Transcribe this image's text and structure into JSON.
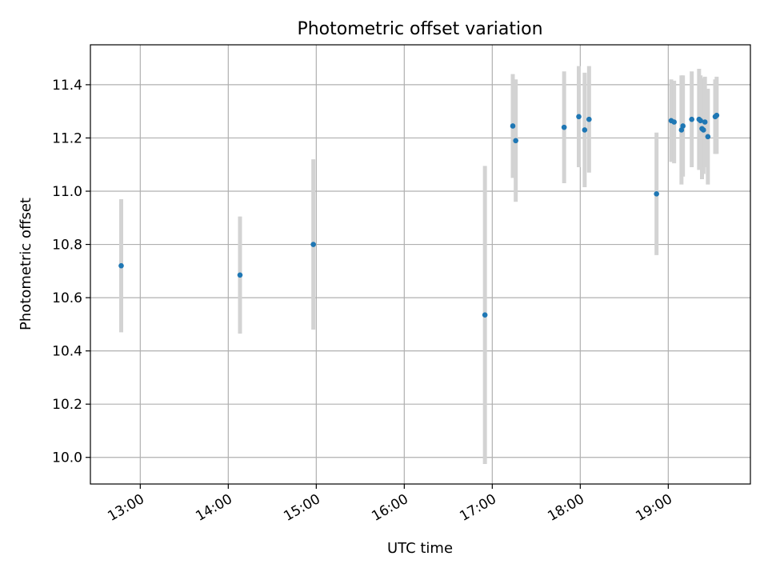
{
  "chart_data": {
    "type": "scatter",
    "title": "Photometric offset variation",
    "xlabel": "UTC time",
    "ylabel": "Photometric offset",
    "xlim": [
      "12:26",
      "19:56"
    ],
    "ylim": [
      9.9,
      11.55
    ],
    "x_ticks": [
      "13:00",
      "14:00",
      "15:00",
      "16:00",
      "17:00",
      "18:00",
      "19:00"
    ],
    "y_ticks": [
      10.0,
      10.2,
      10.4,
      10.6,
      10.8,
      11.0,
      11.2,
      11.4
    ],
    "grid": true,
    "colors": {
      "point": "#1f77b4",
      "errorbar": "#d3d3d3",
      "grid": "#b0b0b0"
    },
    "points": [
      {
        "x": "12:47",
        "y": 10.72,
        "err": 0.25
      },
      {
        "x": "14:08",
        "y": 10.685,
        "err": 0.22
      },
      {
        "x": "14:58",
        "y": 10.8,
        "err": 0.32
      },
      {
        "x": "16:55",
        "y": 10.535,
        "err": 0.56
      },
      {
        "x": "17:14",
        "y": 11.245,
        "err": 0.195
      },
      {
        "x": "17:16",
        "y": 11.19,
        "err": 0.23
      },
      {
        "x": "17:49",
        "y": 11.24,
        "err": 0.21
      },
      {
        "x": "17:59",
        "y": 11.28,
        "err": 0.19
      },
      {
        "x": "18:03",
        "y": 11.23,
        "err": 0.215
      },
      {
        "x": "18:06",
        "y": 11.27,
        "err": 0.2
      },
      {
        "x": "18:52",
        "y": 10.99,
        "err": 0.23
      },
      {
        "x": "19:02",
        "y": 11.265,
        "err": 0.155
      },
      {
        "x": "19:04",
        "y": 11.26,
        "err": 0.155
      },
      {
        "x": "19:09",
        "y": 11.23,
        "err": 0.205
      },
      {
        "x": "19:10",
        "y": 11.245,
        "err": 0.19
      },
      {
        "x": "19:16",
        "y": 11.27,
        "err": 0.18
      },
      {
        "x": "19:21",
        "y": 11.27,
        "err": 0.19
      },
      {
        "x": "19:22",
        "y": 11.265,
        "err": 0.17
      },
      {
        "x": "19:23",
        "y": 11.235,
        "err": 0.19
      },
      {
        "x": "19:24",
        "y": 11.23,
        "err": 0.165
      },
      {
        "x": "19:25",
        "y": 11.26,
        "err": 0.17
      },
      {
        "x": "19:27",
        "y": 11.205,
        "err": 0.18
      },
      {
        "x": "19:32",
        "y": 11.28,
        "err": 0.14
      },
      {
        "x": "19:33",
        "y": 11.285,
        "err": 0.145
      }
    ]
  }
}
